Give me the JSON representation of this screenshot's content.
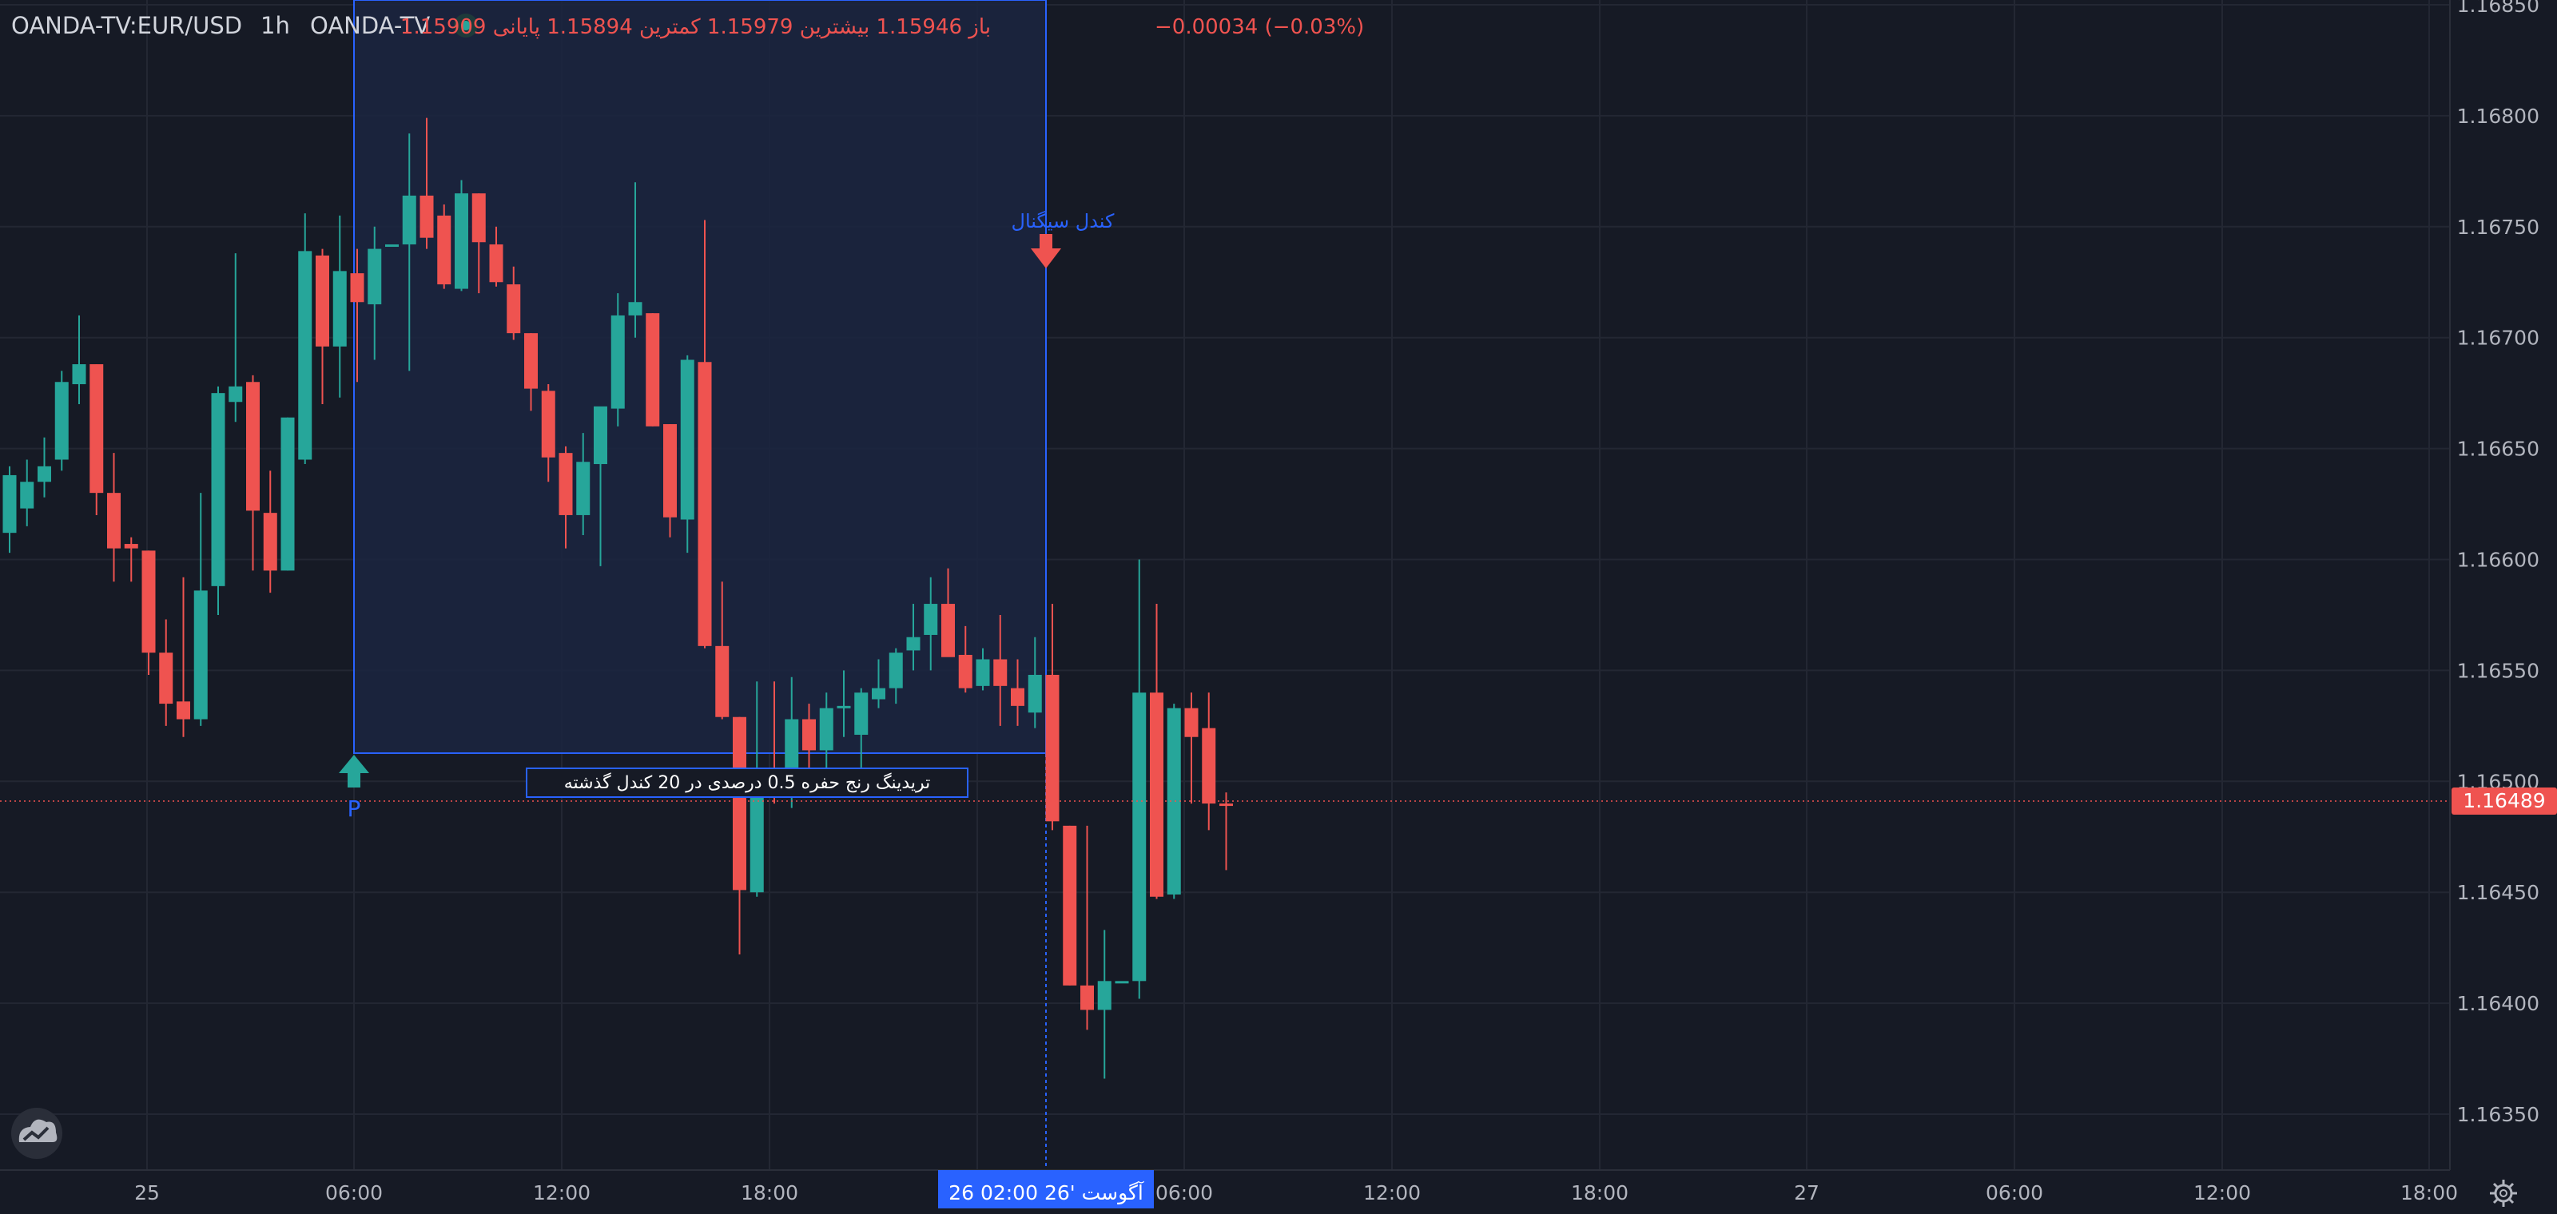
{
  "colors": {
    "background": "#161a25",
    "grid": "#232733",
    "text": "#b2b5be",
    "up": "#26a69a",
    "down": "#ef5350",
    "accent": "#2962ff",
    "range_fill": "#1b2641"
  },
  "header": {
    "symbol": "OANDA-TV:EUR/USD",
    "interval": "1h",
    "source": "OANDA-TV",
    "status_dot": "live-dot-icon",
    "ohlc_text": "باز 1.15946 بیشترین 1.15979 کمترین 1.15894 پایانی 1.15909",
    "change_text": "−0.00034 (−0.03%)"
  },
  "price_axis": {
    "labels": [
      "1.16850",
      "1.16800",
      "1.16750",
      "1.16700",
      "1.16650",
      "1.16600",
      "1.16550",
      "1.16500",
      "1.16450",
      "1.16400",
      "1.16350"
    ],
    "current_price": "1.16489"
  },
  "time_axis": {
    "labels": [
      "25",
      "06:00",
      "12:00",
      "18:00",
      "06:00",
      "12:00",
      "18:00",
      "27",
      "06:00",
      "12:00",
      "18:00"
    ],
    "crosshair_label": "26 آگوست '26   02:00"
  },
  "annotations": {
    "signal_label": "کندل سیگنال",
    "range_label": "تریدینگ رنج حفره 0.5 درصدی در 20 کندل گذشته",
    "pivot_label": "P"
  },
  "icons": {
    "logo": "tradingview-cloud-logo-icon",
    "settings": "gear-icon",
    "up_arrow": "arrow-up-icon",
    "down_arrow": "arrow-down-icon"
  },
  "chart_data": {
    "type": "candlestick",
    "symbol": "OANDA-TV:EUR/USD",
    "interval": "1h",
    "ylim": [
      1.1632,
      1.1686
    ],
    "grid": true,
    "candles": [
      {
        "o": 1.16612,
        "h": 1.16642,
        "l": 1.16603,
        "c": 1.16638
      },
      {
        "o": 1.16623,
        "h": 1.16645,
        "l": 1.16615,
        "c": 1.16635
      },
      {
        "o": 1.16635,
        "h": 1.16655,
        "l": 1.16628,
        "c": 1.16642
      },
      {
        "o": 1.16645,
        "h": 1.16685,
        "l": 1.1664,
        "c": 1.1668
      },
      {
        "o": 1.16679,
        "h": 1.1671,
        "l": 1.1667,
        "c": 1.16688
      },
      {
        "o": 1.16688,
        "h": 1.16688,
        "l": 1.1662,
        "c": 1.1663
      },
      {
        "o": 1.1663,
        "h": 1.16648,
        "l": 1.1659,
        "c": 1.16605
      },
      {
        "o": 1.16607,
        "h": 1.1661,
        "l": 1.1659,
        "c": 1.16605
      },
      {
        "o": 1.16604,
        "h": 1.16604,
        "l": 1.16548,
        "c": 1.16558
      },
      {
        "o": 1.16558,
        "h": 1.16573,
        "l": 1.16525,
        "c": 1.16535
      },
      {
        "o": 1.16536,
        "h": 1.16592,
        "l": 1.1652,
        "c": 1.16528
      },
      {
        "o": 1.16528,
        "h": 1.1663,
        "l": 1.16525,
        "c": 1.16586
      },
      {
        "o": 1.16588,
        "h": 1.16678,
        "l": 1.16575,
        "c": 1.16675
      },
      {
        "o": 1.16671,
        "h": 1.16738,
        "l": 1.16662,
        "c": 1.16678
      },
      {
        "o": 1.1668,
        "h": 1.16683,
        "l": 1.16595,
        "c": 1.16622
      },
      {
        "o": 1.16621,
        "h": 1.1664,
        "l": 1.16585,
        "c": 1.16595
      },
      {
        "o": 1.16595,
        "h": 1.16664,
        "l": 1.16595,
        "c": 1.16664
      },
      {
        "o": 1.16645,
        "h": 1.16756,
        "l": 1.16643,
        "c": 1.16739
      },
      {
        "o": 1.16737,
        "h": 1.1674,
        "l": 1.1667,
        "c": 1.16696
      },
      {
        "o": 1.16696,
        "h": 1.16755,
        "l": 1.16673,
        "c": 1.1673
      },
      {
        "o": 1.16729,
        "h": 1.1674,
        "l": 1.1668,
        "c": 1.16716
      },
      {
        "o": 1.16715,
        "h": 1.1675,
        "l": 1.1669,
        "c": 1.1674
      },
      {
        "o": 1.16742,
        "h": 1.16742,
        "l": 1.16742,
        "c": 1.16742
      },
      {
        "o": 1.16742,
        "h": 1.16792,
        "l": 1.16685,
        "c": 1.16764
      },
      {
        "o": 1.16764,
        "h": 1.16799,
        "l": 1.1674,
        "c": 1.16745
      },
      {
        "o": 1.16755,
        "h": 1.1676,
        "l": 1.16722,
        "c": 1.16724
      },
      {
        "o": 1.16722,
        "h": 1.16771,
        "l": 1.16721,
        "c": 1.16765
      },
      {
        "o": 1.16765,
        "h": 1.16765,
        "l": 1.1672,
        "c": 1.16743
      },
      {
        "o": 1.16742,
        "h": 1.1675,
        "l": 1.16723,
        "c": 1.16725
      },
      {
        "o": 1.16724,
        "h": 1.16732,
        "l": 1.16699,
        "c": 1.16702
      },
      {
        "o": 1.16702,
        "h": 1.16702,
        "l": 1.16667,
        "c": 1.16677
      },
      {
        "o": 1.16676,
        "h": 1.16679,
        "l": 1.16635,
        "c": 1.16646
      },
      {
        "o": 1.16648,
        "h": 1.16651,
        "l": 1.16605,
        "c": 1.1662
      },
      {
        "o": 1.1662,
        "h": 1.16657,
        "l": 1.16611,
        "c": 1.16644
      },
      {
        "o": 1.16643,
        "h": 1.16668,
        "l": 1.16597,
        "c": 1.16669
      },
      {
        "o": 1.16668,
        "h": 1.1672,
        "l": 1.1666,
        "c": 1.1671
      },
      {
        "o": 1.1671,
        "h": 1.1677,
        "l": 1.167,
        "c": 1.16716
      },
      {
        "o": 1.16711,
        "h": 1.16711,
        "l": 1.1666,
        "c": 1.1666
      },
      {
        "o": 1.16661,
        "h": 1.16661,
        "l": 1.1661,
        "c": 1.16619
      },
      {
        "o": 1.16618,
        "h": 1.16692,
        "l": 1.16603,
        "c": 1.1669
      },
      {
        "o": 1.16689,
        "h": 1.16753,
        "l": 1.1656,
        "c": 1.16561
      },
      {
        "o": 1.16561,
        "h": 1.1659,
        "l": 1.16528,
        "c": 1.16529
      },
      {
        "o": 1.16529,
        "h": 1.16529,
        "l": 1.16422,
        "c": 1.16451
      },
      {
        "o": 1.1645,
        "h": 1.16545,
        "l": 1.16448,
        "c": 1.16504
      },
      {
        "o": 1.16505,
        "h": 1.16545,
        "l": 1.1649,
        "c": 1.16497
      },
      {
        "o": 1.16496,
        "h": 1.16547,
        "l": 1.16488,
        "c": 1.16528
      },
      {
        "o": 1.16528,
        "h": 1.16535,
        "l": 1.165,
        "c": 1.16514
      },
      {
        "o": 1.16514,
        "h": 1.1654,
        "l": 1.16505,
        "c": 1.16533
      },
      {
        "o": 1.16534,
        "h": 1.1655,
        "l": 1.1652,
        "c": 1.16534
      },
      {
        "o": 1.16521,
        "h": 1.16542,
        "l": 1.16502,
        "c": 1.1654
      },
      {
        "o": 1.16537,
        "h": 1.16555,
        "l": 1.16533,
        "c": 1.16542
      },
      {
        "o": 1.16542,
        "h": 1.1656,
        "l": 1.16535,
        "c": 1.16558
      },
      {
        "o": 1.16559,
        "h": 1.1658,
        "l": 1.1655,
        "c": 1.16565
      },
      {
        "o": 1.16566,
        "h": 1.16592,
        "l": 1.1655,
        "c": 1.1658
      },
      {
        "o": 1.1658,
        "h": 1.16596,
        "l": 1.16557,
        "c": 1.16556
      },
      {
        "o": 1.16557,
        "h": 1.1657,
        "l": 1.1654,
        "c": 1.16542
      },
      {
        "o": 1.16543,
        "h": 1.1656,
        "l": 1.16541,
        "c": 1.16555
      },
      {
        "o": 1.16555,
        "h": 1.16575,
        "l": 1.16525,
        "c": 1.16543
      },
      {
        "o": 1.16542,
        "h": 1.16555,
        "l": 1.16525,
        "c": 1.16534
      },
      {
        "o": 1.16531,
        "h": 1.16565,
        "l": 1.16524,
        "c": 1.16548
      },
      {
        "o": 1.16548,
        "h": 1.1658,
        "l": 1.16478,
        "c": 1.16482
      },
      {
        "o": 1.1648,
        "h": 1.1648,
        "l": 1.16408,
        "c": 1.16408
      },
      {
        "o": 1.16408,
        "h": 1.1648,
        "l": 1.16388,
        "c": 1.16397
      },
      {
        "o": 1.16397,
        "h": 1.16433,
        "l": 1.16366,
        "c": 1.1641
      },
      {
        "o": 1.1641,
        "h": 1.1641,
        "l": 1.1641,
        "c": 1.1641
      },
      {
        "o": 1.1641,
        "h": 1.166,
        "l": 1.16402,
        "c": 1.1654
      },
      {
        "o": 1.1654,
        "h": 1.1658,
        "l": 1.16447,
        "c": 1.16448
      },
      {
        "o": 1.16449,
        "h": 1.16535,
        "l": 1.16447,
        "c": 1.16533
      },
      {
        "o": 1.16533,
        "h": 1.1654,
        "l": 1.1649,
        "c": 1.1652
      },
      {
        "o": 1.16524,
        "h": 1.1654,
        "l": 1.16478,
        "c": 1.1649
      },
      {
        "o": 1.1649,
        "h": 1.16495,
        "l": 1.1646,
        "c": 1.16489
      }
    ]
  }
}
